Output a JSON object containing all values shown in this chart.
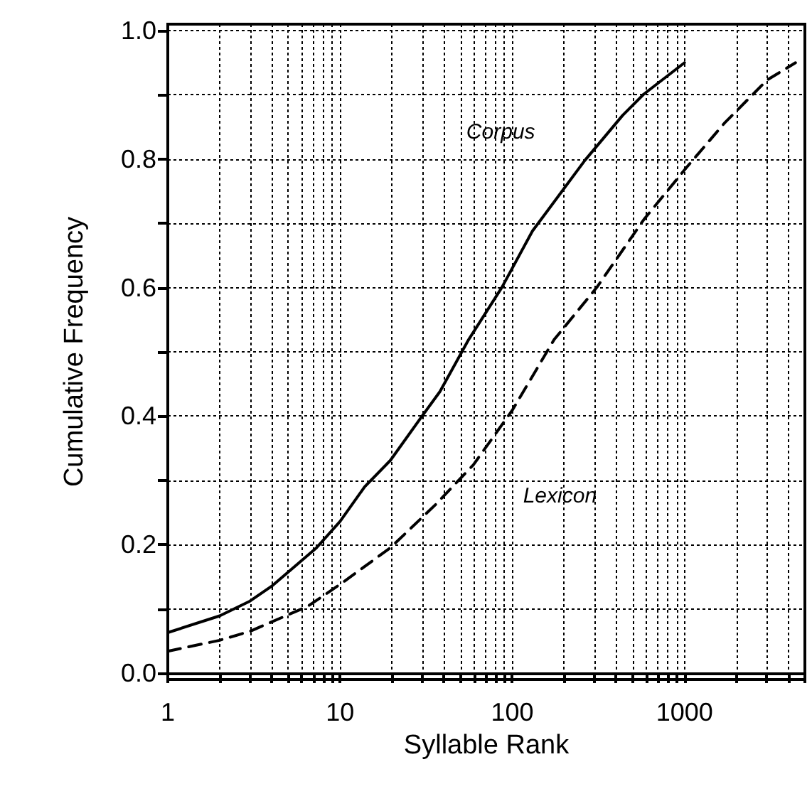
{
  "chart_data": {
    "type": "line",
    "xlabel": "Syllable Rank",
    "ylabel": "Cumulative Frequency",
    "log": "x",
    "grid": true,
    "legend": false,
    "marker": "none",
    "xlim": [
      1,
      5000
    ],
    "ylim": [
      -0.01,
      1.01
    ],
    "xticks": [
      1,
      {
        "value": 2,
        "label": null
      },
      {
        "value": 3,
        "label": null
      },
      {
        "value": 4,
        "label": null
      },
      {
        "value": 5,
        "label": null
      },
      {
        "value": 6,
        "label": null
      },
      {
        "value": 7,
        "label": null
      },
      {
        "value": 8,
        "label": null
      },
      {
        "value": 9,
        "label": null
      },
      10,
      {
        "value": 20,
        "label": null
      },
      {
        "value": 30,
        "label": null
      },
      {
        "value": 40,
        "label": null
      },
      {
        "value": 50,
        "label": null
      },
      {
        "value": 60,
        "label": null
      },
      {
        "value": 70,
        "label": null
      },
      {
        "value": 80,
        "label": null
      },
      {
        "value": 90,
        "label": null
      },
      100,
      {
        "value": 200,
        "label": null
      },
      {
        "value": 300,
        "label": null
      },
      {
        "value": 400,
        "label": null
      },
      {
        "value": 500,
        "label": null
      },
      {
        "value": 600,
        "label": null
      },
      {
        "value": 700,
        "label": null
      },
      {
        "value": 800,
        "label": null
      },
      {
        "value": 900,
        "label": null
      },
      1000,
      {
        "value": 2000,
        "label": null
      },
      {
        "value": 3000,
        "label": null
      },
      {
        "value": 4000,
        "label": null
      },
      {
        "value": 5000,
        "label": null
      }
    ],
    "yticks": [
      {
        "value": 0,
        "label": "0.0"
      },
      {
        "value": 0.1,
        "label": null
      },
      {
        "value": 0.2,
        "label": "0.2"
      },
      {
        "value": 0.3,
        "label": null
      },
      {
        "value": 0.4,
        "label": "0.4"
      },
      {
        "value": 0.5,
        "label": null
      },
      {
        "value": 0.6,
        "label": "0.6"
      },
      {
        "value": 0.7,
        "label": null
      },
      {
        "value": 0.8,
        "label": "0.8"
      },
      {
        "value": 0.9,
        "label": null
      },
      {
        "value": 1,
        "label": "1.0"
      }
    ],
    "series": [
      {
        "name": "Corpus",
        "color": "#000000",
        "line_style": "solid",
        "x": [
          1,
          2,
          3,
          4,
          7.3,
          10,
          13.9,
          19.6,
          29.6,
          38,
          55.8,
          86.9,
          131,
          264,
          437,
          580,
          1000
        ],
        "values": [
          0.063,
          0.089,
          0.112,
          0.135,
          0.195,
          0.236,
          0.29,
          0.331,
          0.398,
          0.438,
          0.519,
          0.6,
          0.688,
          0.798,
          0.868,
          0.901,
          0.95
        ]
      },
      {
        "name": "Lexicon",
        "color": "#000000",
        "line_style": "dashed",
        "x": [
          1,
          2,
          3,
          6.5,
          10,
          19.6,
          35.8,
          59.4,
          100,
          175,
          309,
          581,
          1028,
          1706,
          3015,
          4410
        ],
        "values": [
          0.034,
          0.051,
          0.065,
          0.104,
          0.138,
          0.195,
          0.262,
          0.324,
          0.409,
          0.519,
          0.6,
          0.706,
          0.787,
          0.856,
          0.923,
          0.95
        ]
      }
    ]
  }
}
